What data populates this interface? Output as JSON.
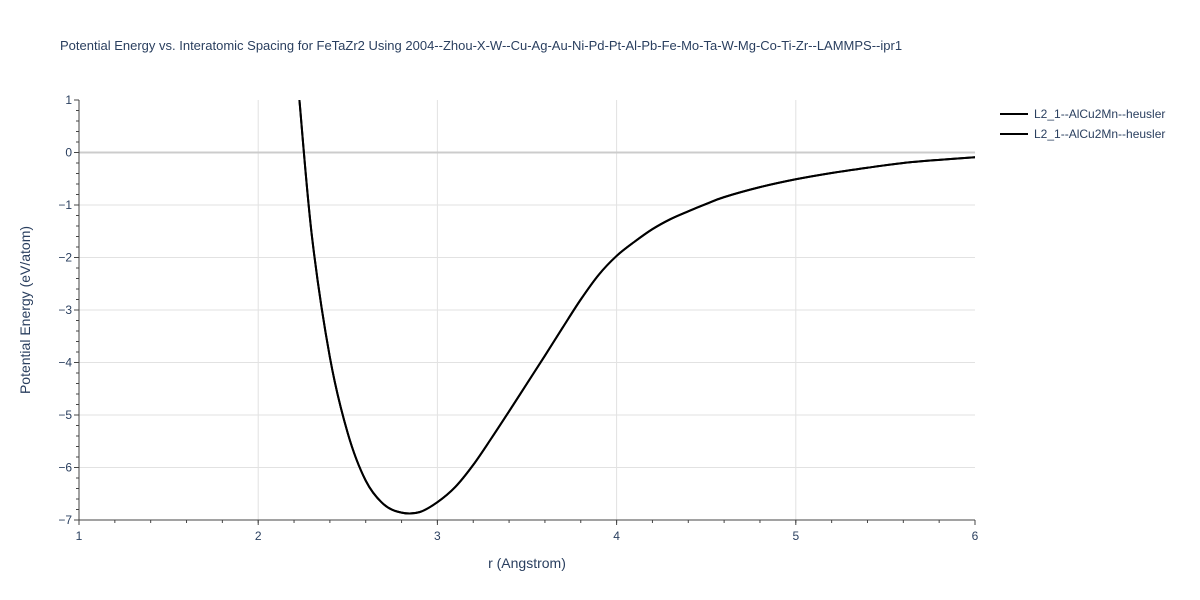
{
  "chart_data": {
    "type": "line",
    "title": "Potential Energy vs. Interatomic Spacing for FeTaZr2 Using 2004--Zhou-X-W--Cu-Ag-Au-Ni-Pd-Pt-Al-Pb-Fe-Mo-Ta-W-Mg-Co-Ti-Zr--LAMMPS--ipr1",
    "xlabel": "r (Angstrom)",
    "ylabel": "Potential Energy (eV/atom)",
    "xlim": [
      1,
      6
    ],
    "ylim": [
      -7,
      1
    ],
    "x_ticks": [
      "1",
      "2",
      "3",
      "4",
      "5",
      "6"
    ],
    "y_ticks": [
      "1",
      "0",
      "−1",
      "−2",
      "−3",
      "−4",
      "−5",
      "−6",
      "−7"
    ],
    "grid": true,
    "legend_position": "top-right",
    "series": [
      {
        "name": "L2_1--AlCu2Mn--heusler",
        "color": "#000000",
        "x": [
          2.23,
          2.3,
          2.4,
          2.5,
          2.6,
          2.7,
          2.8,
          2.9,
          3.0,
          3.1,
          3.2,
          3.3,
          3.4,
          3.5,
          3.6,
          3.7,
          3.8,
          3.9,
          4.0,
          4.1,
          4.2,
          4.3,
          4.4,
          4.5,
          4.6,
          4.8,
          5.0,
          5.2,
          5.4,
          5.6,
          5.8,
          6.0
        ],
        "y": [
          1.0,
          -1.6,
          -3.9,
          -5.35,
          -6.25,
          -6.7,
          -6.86,
          -6.85,
          -6.66,
          -6.37,
          -5.95,
          -5.45,
          -4.93,
          -4.4,
          -3.87,
          -3.33,
          -2.8,
          -2.33,
          -1.97,
          -1.7,
          -1.46,
          -1.27,
          -1.12,
          -0.98,
          -0.85,
          -0.66,
          -0.51,
          -0.39,
          -0.29,
          -0.2,
          -0.14,
          -0.09
        ]
      },
      {
        "name": "L2_1--AlCu2Mn--heusler",
        "color": "#000000",
        "x": [
          2.23,
          2.3,
          2.4,
          2.5,
          2.6,
          2.7,
          2.8,
          2.9,
          3.0,
          3.1,
          3.2,
          3.3,
          3.4,
          3.5,
          3.6,
          3.7,
          3.8,
          3.9,
          4.0,
          4.1,
          4.2,
          4.3,
          4.4,
          4.5,
          4.6,
          4.8,
          5.0,
          5.2,
          5.4,
          5.6,
          5.8,
          6.0
        ],
        "y": [
          1.0,
          -1.6,
          -3.9,
          -5.35,
          -6.25,
          -6.7,
          -6.86,
          -6.85,
          -6.66,
          -6.37,
          -5.95,
          -5.45,
          -4.93,
          -4.4,
          -3.87,
          -3.33,
          -2.8,
          -2.33,
          -1.97,
          -1.7,
          -1.46,
          -1.27,
          -1.12,
          -0.98,
          -0.85,
          -0.66,
          -0.51,
          -0.39,
          -0.29,
          -0.2,
          -0.14,
          -0.09
        ]
      }
    ]
  }
}
